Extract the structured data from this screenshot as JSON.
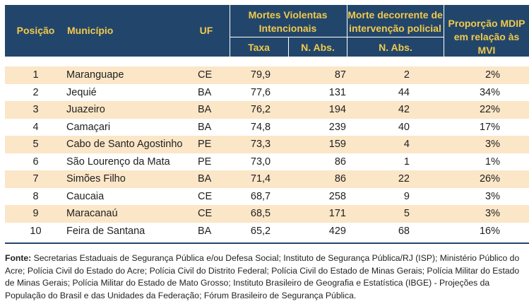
{
  "headers": {
    "posicao": "Posição",
    "municipio": "Município",
    "uf": "UF",
    "mvi_line1": "Mortes Violentas",
    "mvi_line2": "Intencionais",
    "mdip_line1": "Morte decorrente de",
    "mdip_line2": "intervenção policial",
    "prop_line1": "Proporção MDIP",
    "prop_line2": "em relação às MVI",
    "taxa": "Taxa",
    "nabs": "N. Abs.",
    "nabs2": "N. Abs."
  },
  "rows": [
    {
      "pos": "1",
      "mun": "Maranguape",
      "uf": "CE",
      "taxa": "79,9",
      "nabs": "87",
      "mdip": "2",
      "prop": "2%"
    },
    {
      "pos": "2",
      "mun": "Jequié",
      "uf": "BA",
      "taxa": "77,6",
      "nabs": "131",
      "mdip": "44",
      "prop": "34%"
    },
    {
      "pos": "3",
      "mun": "Juazeiro",
      "uf": "BA",
      "taxa": "76,2",
      "nabs": "194",
      "mdip": "42",
      "prop": "22%"
    },
    {
      "pos": "4",
      "mun": "Camaçari",
      "uf": "BA",
      "taxa": "74,8",
      "nabs": "239",
      "mdip": "40",
      "prop": "17%"
    },
    {
      "pos": "5",
      "mun": "Cabo de Santo Agostinho",
      "uf": "PE",
      "taxa": "73,3",
      "nabs": "159",
      "mdip": "4",
      "prop": "3%"
    },
    {
      "pos": "6",
      "mun": "São Lourenço da Mata",
      "uf": "PE",
      "taxa": "73,0",
      "nabs": "86",
      "mdip": "1",
      "prop": "1%"
    },
    {
      "pos": "7",
      "mun": "Simões Filho",
      "uf": "BA",
      "taxa": "71,4",
      "nabs": "86",
      "mdip": "22",
      "prop": "26%"
    },
    {
      "pos": "8",
      "mun": "Caucaia",
      "uf": "CE",
      "taxa": "68,7",
      "nabs": "258",
      "mdip": "9",
      "prop": "3%"
    },
    {
      "pos": "9",
      "mun": "Maracanaú",
      "uf": "CE",
      "taxa": "68,5",
      "nabs": "171",
      "mdip": "5",
      "prop": "3%"
    },
    {
      "pos": "10",
      "mun": "Feira de Santana",
      "uf": "BA",
      "taxa": "65,2",
      "nabs": "429",
      "mdip": "68",
      "prop": "16%"
    }
  ],
  "footnote": {
    "label": "Fonte:",
    "text": " Secretarias Estaduais de Segurança Pública e/ou Defesa Social; Instituto de Segurança Pública/RJ (ISP); Ministério Público do Acre; Polícia Civil do Estado do Acre; Polícia Civil do Distrito Federal; Polícia Civil do Estado de Minas Gerais; Polícia Militar do Estado de Minas Gerais; Polícia Militar do Estado de Mato Grosso; Instituto Brasileiro de Geografia e Estatística (IBGE) - Projeções da População do Brasil e das Unidades da Federação; Fórum Brasileiro de Segurança Pública."
  },
  "colors": {
    "header_bg": "#22466b",
    "header_text": "#f2c94c",
    "row_shade": "#fbe6c7"
  }
}
